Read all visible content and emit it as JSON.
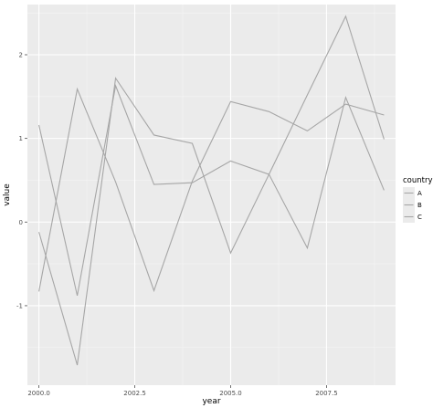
{
  "chart_data": {
    "type": "line",
    "xlabel": "year",
    "ylabel": "value",
    "xlim": [
      1999.7,
      2009.3
    ],
    "ylim": [
      -1.95,
      2.6
    ],
    "x_ticks": [
      2000,
      2002.5,
      2005,
      2007.5
    ],
    "x_tick_labels": [
      "2000.0",
      "2002.5",
      "2005.0",
      "2007.5"
    ],
    "y_ticks": [
      -1,
      0,
      1,
      2
    ],
    "y_tick_labels": [
      "-1",
      "0",
      "1",
      "2"
    ],
    "grid": true,
    "legend": {
      "title": "country",
      "position": "right"
    },
    "x": [
      2000,
      2001,
      2002,
      2003,
      2004,
      2005,
      2006,
      2007,
      2008,
      2009
    ],
    "series": [
      {
        "name": "A",
        "color": "#a6a6a6",
        "values": [
          1.16,
          -0.88,
          1.63,
          0.45,
          0.47,
          0.73,
          0.57,
          1.52,
          2.46,
          0.99
        ]
      },
      {
        "name": "B",
        "color": "#a6a6a6",
        "values": [
          -0.12,
          -1.71,
          1.72,
          1.04,
          0.94,
          -0.37,
          0.57,
          -0.31,
          1.49,
          0.38
        ]
      },
      {
        "name": "C",
        "color": "#a6a6a6",
        "values": [
          -0.83,
          1.59,
          0.48,
          -0.82,
          0.49,
          1.44,
          1.32,
          1.09,
          1.41,
          1.28
        ]
      }
    ]
  }
}
